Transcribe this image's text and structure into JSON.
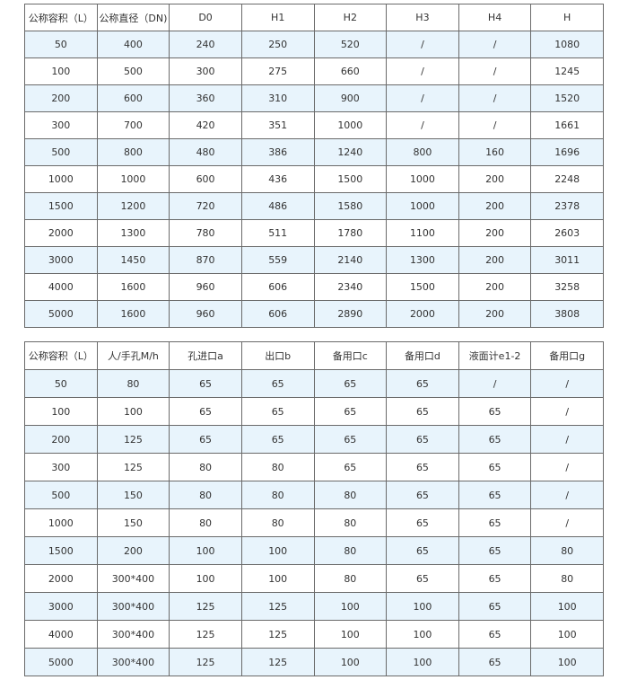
{
  "table1": {
    "headers": [
      "公称容积（L）",
      "公称直径（DN)",
      "D0",
      "H1",
      "H2",
      "H3",
      "H4",
      "H"
    ],
    "rows": [
      [
        "50",
        "400",
        "240",
        "250",
        "520",
        "/",
        "/",
        "1080"
      ],
      [
        "100",
        "500",
        "300",
        "275",
        "660",
        "/",
        "/",
        "1245"
      ],
      [
        "200",
        "600",
        "360",
        "310",
        "900",
        "/",
        "/",
        "1520"
      ],
      [
        "300",
        "700",
        "420",
        "351",
        "1000",
        "/",
        "/",
        "1661"
      ],
      [
        "500",
        "800",
        "480",
        "386",
        "1240",
        "800",
        "160",
        "1696"
      ],
      [
        "1000",
        "1000",
        "600",
        "436",
        "1500",
        "1000",
        "200",
        "2248"
      ],
      [
        "1500",
        "1200",
        "720",
        "486",
        "1580",
        "1000",
        "200",
        "2378"
      ],
      [
        "2000",
        "1300",
        "780",
        "511",
        "1780",
        "1100",
        "200",
        "2603"
      ],
      [
        "3000",
        "1450",
        "870",
        "559",
        "2140",
        "1300",
        "200",
        "3011"
      ],
      [
        "4000",
        "1600",
        "960",
        "606",
        "2340",
        "1500",
        "200",
        "3258"
      ],
      [
        "5000",
        "1600",
        "960",
        "606",
        "2890",
        "2000",
        "200",
        "3808"
      ]
    ]
  },
  "table2": {
    "headers": [
      "公称容积（L）",
      "人/手孔M/h",
      "孔进口a",
      "出口b",
      "备用口c",
      "备用口d",
      "液面计e1-2",
      "备用口g"
    ],
    "rows": [
      [
        "50",
        "80",
        "65",
        "65",
        "65",
        "65",
        "/",
        "/"
      ],
      [
        "100",
        "100",
        "65",
        "65",
        "65",
        "65",
        "65",
        "/"
      ],
      [
        "200",
        "125",
        "65",
        "65",
        "65",
        "65",
        "65",
        "/"
      ],
      [
        "300",
        "125",
        "80",
        "80",
        "65",
        "65",
        "65",
        "/"
      ],
      [
        "500",
        "150",
        "80",
        "80",
        "80",
        "65",
        "65",
        "/"
      ],
      [
        "1000",
        "150",
        "80",
        "80",
        "80",
        "65",
        "65",
        "/"
      ],
      [
        "1500",
        "200",
        "100",
        "100",
        "80",
        "65",
        "65",
        "80"
      ],
      [
        "2000",
        "300*400",
        "100",
        "100",
        "80",
        "65",
        "65",
        "80"
      ],
      [
        "3000",
        "300*400",
        "125",
        "125",
        "100",
        "100",
        "65",
        "100"
      ],
      [
        "4000",
        "300*400",
        "125",
        "125",
        "100",
        "100",
        "65",
        "100"
      ],
      [
        "5000",
        "300*400",
        "125",
        "125",
        "100",
        "100",
        "65",
        "100"
      ]
    ]
  },
  "colors": {
    "row_highlight": "#e8f4fc",
    "border": "#6a6a6a"
  }
}
